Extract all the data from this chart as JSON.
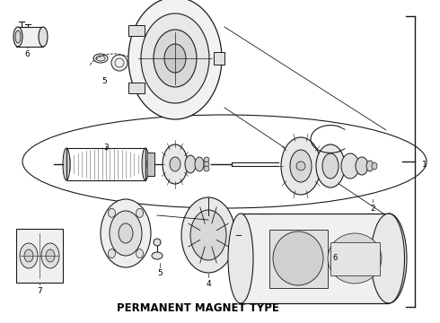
{
  "title": "PERMANENT MAGNET TYPE",
  "bg": "#ffffff",
  "lc": "#1a1a1a",
  "fig_w": 4.9,
  "fig_h": 3.6,
  "dpi": 100
}
